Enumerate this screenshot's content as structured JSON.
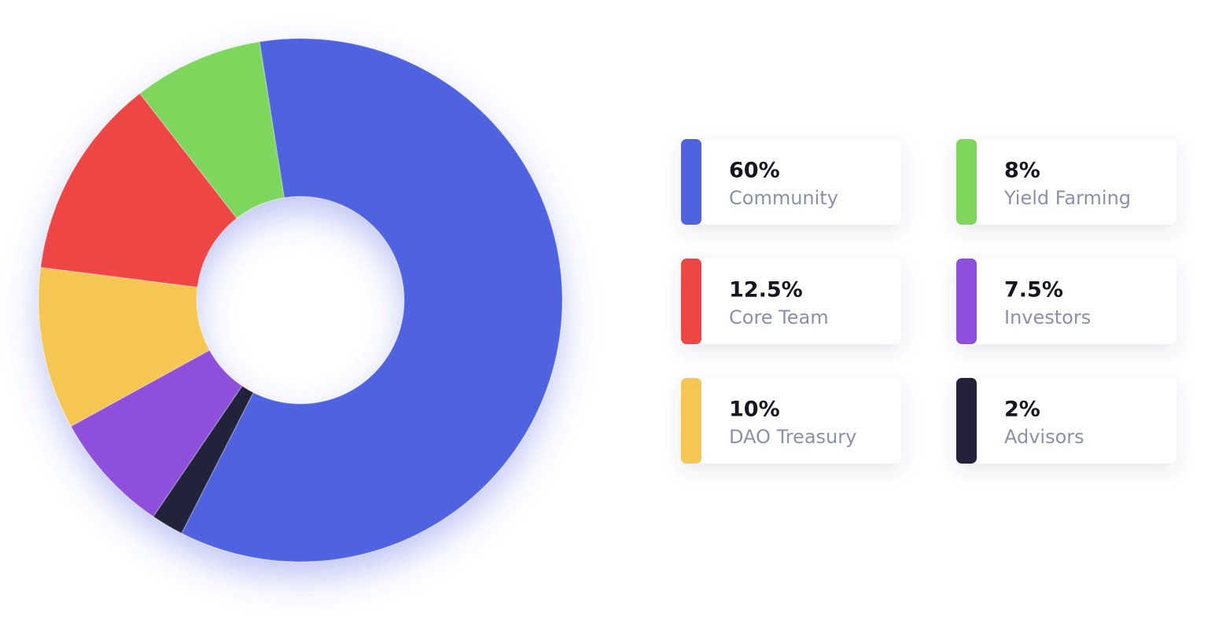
{
  "chart_data": {
    "type": "pie",
    "categories": [
      "Community",
      "Advisors",
      "Investors",
      "DAO Treasury",
      "Core Team",
      "Yield Farming"
    ],
    "values": [
      60,
      2,
      7.5,
      10,
      12.5,
      8
    ],
    "value_labels": [
      "60%",
      "2%",
      "7.5%",
      "10%",
      "12.5%",
      "8%"
    ],
    "colors": [
      "#4f62e0",
      "#23223a",
      "#8e4fdc",
      "#f6c652",
      "#ee4545",
      "#7fd65d"
    ]
  }
}
